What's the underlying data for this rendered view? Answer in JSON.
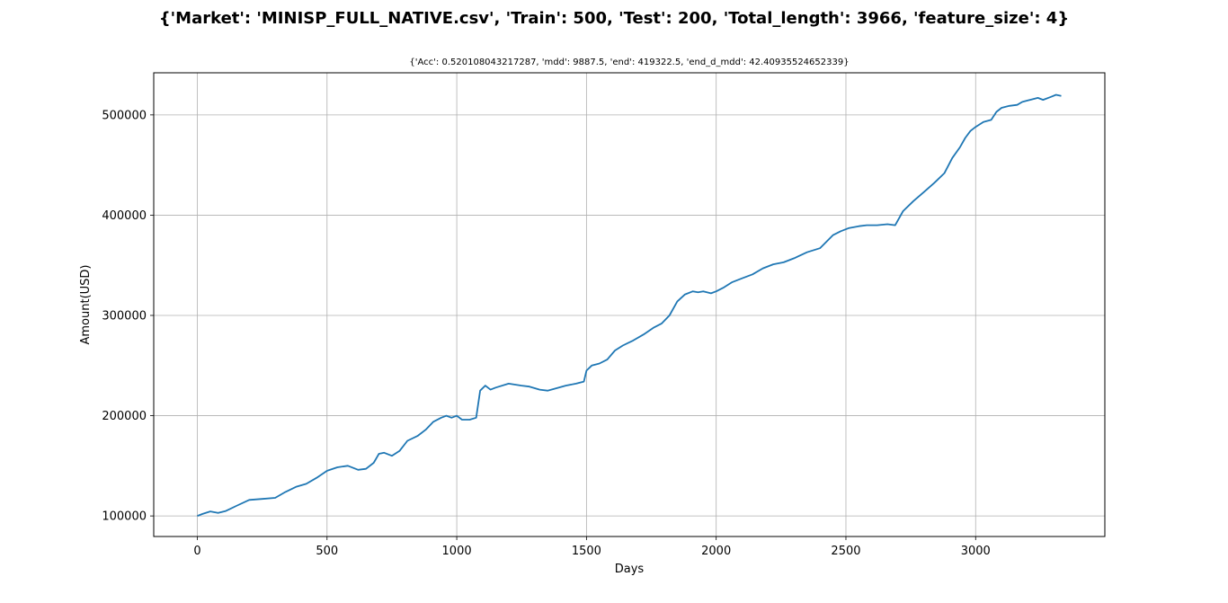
{
  "figure": {
    "suptitle": "{'Market': 'MINISP_FULL_NATIVE.csv', 'Train': 500, 'Test': 200, 'Total_length': 3966, 'feature_size': 4}"
  },
  "chart_data": {
    "type": "line",
    "title": "{'Acc': 0.520108043217287, 'mdd': 9887.5, 'end': 419322.5, 'end_d_mdd': 42.40935524652339}",
    "xlabel": "Days",
    "ylabel": "Amount(USD)",
    "xlim": [
      -168,
      3498
    ],
    "ylim": [
      79500,
      542000
    ],
    "xticks": [
      0,
      500,
      1000,
      1500,
      2000,
      2500,
      3000
    ],
    "xtick_labels": [
      "0",
      "500",
      "1000",
      "1500",
      "2000",
      "2500",
      "3000"
    ],
    "yticks": [
      100000,
      200000,
      300000,
      400000,
      500000
    ],
    "ytick_labels": [
      "100000",
      "200000",
      "300000",
      "400000",
      "500000"
    ],
    "grid": true,
    "color": "#1f77b4",
    "series": [
      {
        "x": [
          0,
          20,
          50,
          80,
          110,
          150,
          200,
          250,
          300,
          340,
          380,
          420,
          460,
          500,
          540,
          580,
          620,
          650,
          680,
          700,
          720,
          750,
          780,
          810,
          850,
          880,
          910,
          940,
          960,
          980,
          1000,
          1020,
          1050,
          1075,
          1090,
          1110,
          1130,
          1150,
          1200,
          1250,
          1280,
          1320,
          1350,
          1380,
          1420,
          1460,
          1490,
          1500,
          1520,
          1550,
          1580,
          1610,
          1640,
          1680,
          1720,
          1760,
          1790,
          1820,
          1850,
          1880,
          1910,
          1930,
          1950,
          1980,
          2000,
          2030,
          2060,
          2100,
          2140,
          2180,
          2220,
          2260,
          2300,
          2350,
          2400,
          2450,
          2480,
          2490,
          2510,
          2550,
          2580,
          2620,
          2660,
          2690,
          2720,
          2760,
          2800,
          2840,
          2880,
          2910,
          2940,
          2960,
          2980,
          3000,
          3030,
          3060,
          3080,
          3100,
          3130,
          3160,
          3180,
          3210,
          3240,
          3260,
          3290,
          3310,
          3330
        ],
        "y": [
          100000,
          102000,
          104500,
          103000,
          105000,
          110000,
          116000,
          117000,
          118000,
          124000,
          129000,
          132000,
          138000,
          145000,
          148500,
          150000,
          146000,
          147000,
          153000,
          162000,
          163000,
          160000,
          165000,
          175000,
          180000,
          186000,
          194000,
          198000,
          200000,
          198000,
          200000,
          196000,
          196000,
          198000,
          225000,
          230000,
          226000,
          228000,
          232000,
          230000,
          229000,
          226000,
          225000,
          227000,
          230000,
          232000,
          234000,
          245000,
          250000,
          252000,
          256000,
          265000,
          270000,
          275000,
          281000,
          288000,
          292000,
          300000,
          314000,
          321000,
          324000,
          323000,
          324000,
          322000,
          324000,
          328000,
          333000,
          337000,
          341000,
          347000,
          351000,
          353000,
          357000,
          363000,
          367000,
          380000,
          384000,
          385000,
          387000,
          389000,
          390000,
          390000,
          391000,
          390000,
          404000,
          414000,
          423000,
          432000,
          442000,
          457000,
          468000,
          477000,
          484000,
          488000,
          493000,
          495000,
          503000,
          507000,
          509000,
          510000,
          513000,
          515000,
          517000,
          515000,
          518000,
          520000,
          519000
        ]
      }
    ]
  }
}
